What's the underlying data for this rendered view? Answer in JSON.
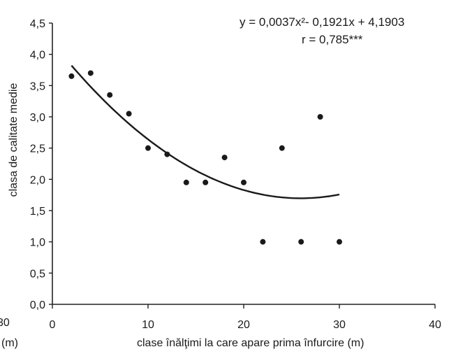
{
  "chart_data": {
    "type": "scatter",
    "title": "",
    "equation": "y = 0,0037x²- 0,1921x + 4,1903",
    "r_text": "r = 0,785***",
    "ylabel": "clasa de calitate medie",
    "xlabel": "clase  înălţimi la care apare prima înfurcire (m)",
    "xlim": [
      0,
      40
    ],
    "ylim": [
      0,
      4.5
    ],
    "x_ticks": [
      "0",
      "10",
      "20",
      "30",
      "40"
    ],
    "y_ticks": [
      "0,0",
      "0,5",
      "1,0",
      "1,5",
      "2,0",
      "2,5",
      "3,0",
      "3,5",
      "4,0",
      "4,5"
    ],
    "points": [
      {
        "x": 2,
        "y": 3.65
      },
      {
        "x": 4,
        "y": 3.7
      },
      {
        "x": 6,
        "y": 3.35
      },
      {
        "x": 8,
        "y": 3.05
      },
      {
        "x": 10,
        "y": 2.5
      },
      {
        "x": 12,
        "y": 2.4
      },
      {
        "x": 14,
        "y": 1.95
      },
      {
        "x": 16,
        "y": 1.95
      },
      {
        "x": 18,
        "y": 2.35
      },
      {
        "x": 20,
        "y": 1.95
      },
      {
        "x": 22,
        "y": 1.0
      },
      {
        "x": 24,
        "y": 2.5
      },
      {
        "x": 26,
        "y": 1.0
      },
      {
        "x": 28,
        "y": 3.0
      },
      {
        "x": 30,
        "y": 1.0
      }
    ],
    "trendline": {
      "a": 0.0037,
      "b": -0.1921,
      "c": 4.1903,
      "x_range": [
        2,
        30
      ]
    },
    "grid": false,
    "legend": "none"
  },
  "adjacent_fragment": {
    "tick": "30",
    "unit": "(m)"
  }
}
